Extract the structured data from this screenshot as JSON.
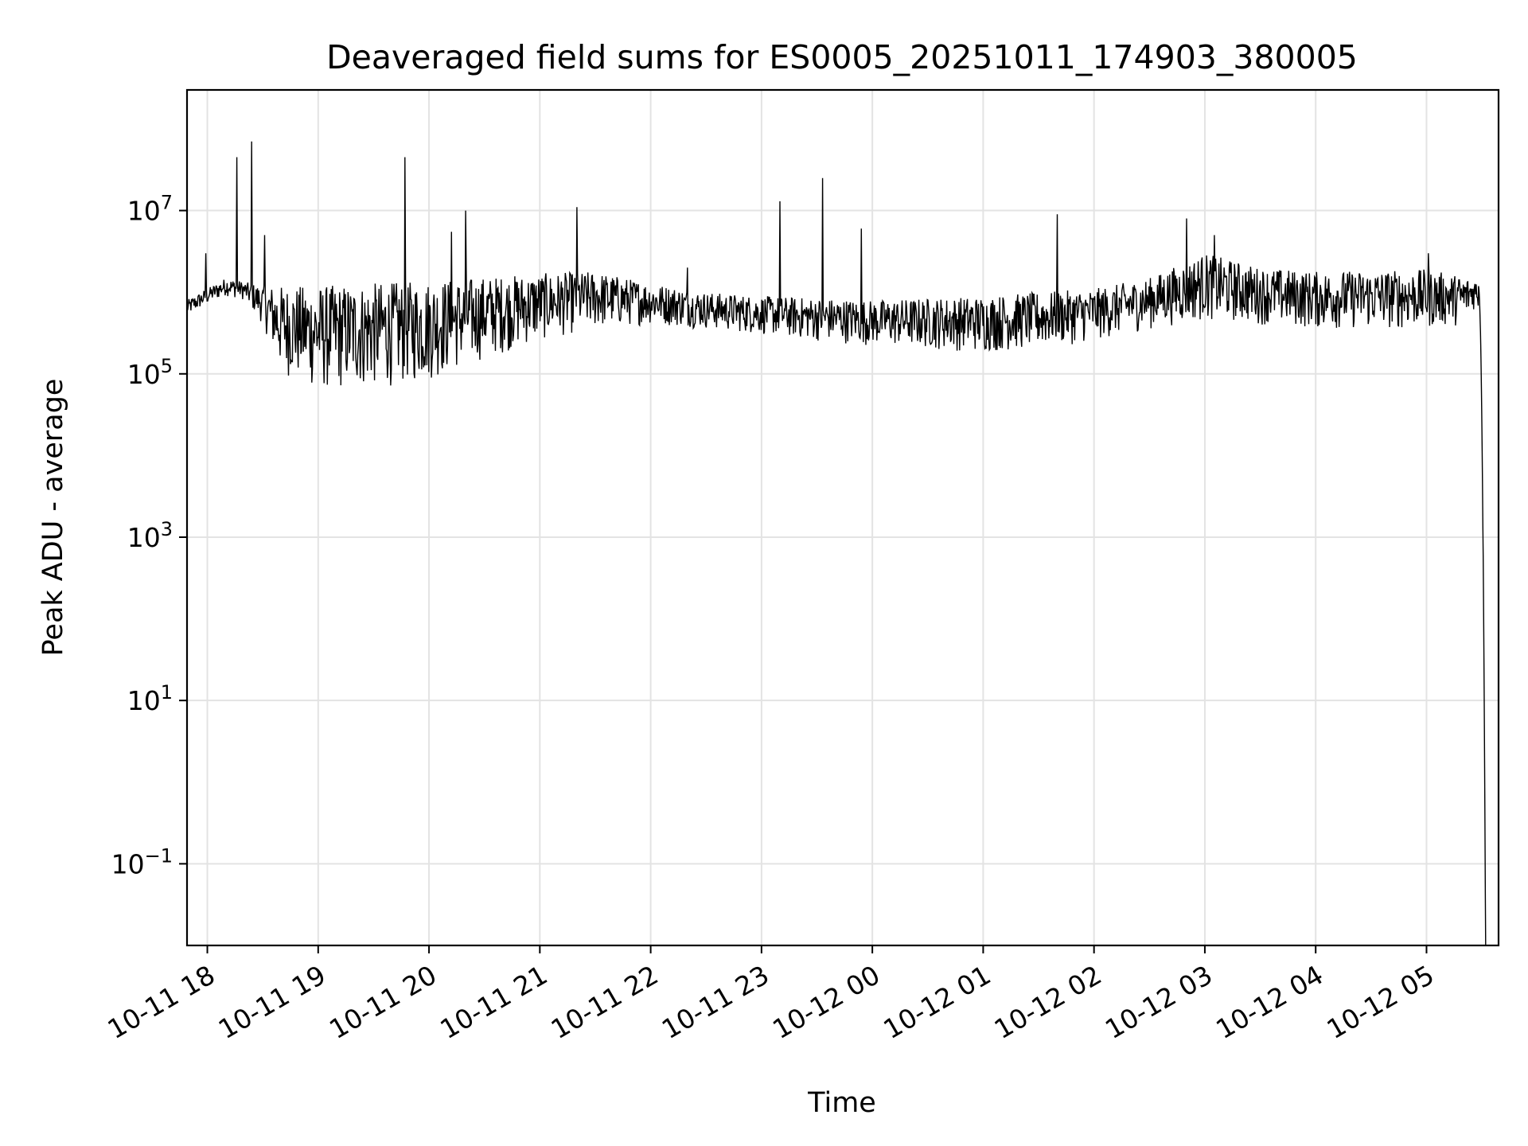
{
  "chart_data": {
    "type": "line",
    "title": "Deaveraged field sums for ES0005_20251011_174903_380005",
    "xlabel": "Time",
    "ylabel": "Peak ADU - average",
    "yscale": "log",
    "grid": true,
    "legend": "none",
    "xlim": [
      "2025-10-11 17:49",
      "2025-10-12 05:39"
    ],
    "ylim": [
      0.01,
      300000000
    ],
    "x_ticks": [
      "10-11 18",
      "10-11 19",
      "10-11 20",
      "10-11 21",
      "10-11 22",
      "10-11 23",
      "10-12 00",
      "10-12 01",
      "10-12 02",
      "10-12 03",
      "10-12 04",
      "10-12 05"
    ],
    "y_ticks": [
      {
        "value": 0.1,
        "base": "10",
        "exp": "−1"
      },
      {
        "value": 10,
        "base": "10",
        "exp": "1"
      },
      {
        "value": 1000,
        "base": "10",
        "exp": "3"
      },
      {
        "value": 100000,
        "base": "10",
        "exp": "5"
      },
      {
        "value": 10000000,
        "base": "10",
        "exp": "7"
      }
    ],
    "series": [
      {
        "color": "#000000",
        "baseline_x": [
          "2025-10-11 17:49",
          "2025-10-11 18:00",
          "2025-10-11 18:10",
          "2025-10-11 18:20",
          "2025-10-11 18:30",
          "2025-10-11 18:40",
          "2025-10-11 19:00",
          "2025-10-11 19:30",
          "2025-10-11 20:00",
          "2025-10-11 20:30",
          "2025-10-11 21:00",
          "2025-10-11 21:30",
          "2025-10-11 22:00",
          "2025-10-11 22:30",
          "2025-10-11 23:00",
          "2025-10-11 23:30",
          "2025-10-12 00:00",
          "2025-10-12 00:30",
          "2025-10-12 01:00",
          "2025-10-12 01:30",
          "2025-10-12 02:00",
          "2025-10-12 02:30",
          "2025-10-12 03:00",
          "2025-10-12 03:30",
          "2025-10-12 04:00",
          "2025-10-12 04:30",
          "2025-10-12 05:00",
          "2025-10-12 05:20",
          "2025-10-12 05:25"
        ],
        "baseline_y": [
          500000,
          700000,
          900000,
          800000,
          400000,
          100000,
          60000,
          65000,
          80000,
          150000,
          250000,
          350000,
          400000,
          350000,
          300000,
          250000,
          220000,
          200000,
          180000,
          200000,
          250000,
          350000,
          450000,
          400000,
          350000,
          350000,
          350000,
          400000,
          600000
        ],
        "top_x": [
          "2025-10-11 17:49",
          "2025-10-11 18:10",
          "2025-10-11 18:30",
          "2025-10-11 19:00",
          "2025-10-11 20:00",
          "2025-10-11 21:00",
          "2025-10-11 21:30",
          "2025-10-11 22:00",
          "2025-10-11 22:30",
          "2025-10-11 23:00",
          "2025-10-11 23:30",
          "2025-10-12 00:00",
          "2025-10-12 00:30",
          "2025-10-12 01:00",
          "2025-10-12 01:30",
          "2025-10-12 02:00",
          "2025-10-12 02:30",
          "2025-10-12 03:00",
          "2025-10-12 03:30",
          "2025-10-12 04:00",
          "2025-10-12 05:00",
          "2025-10-12 05:25"
        ],
        "top_y": [
          800000,
          1500000,
          1200000,
          1200000,
          1400000,
          1700000,
          1800000,
          1300000,
          1000000,
          900000,
          850000,
          800000,
          850000,
          900000,
          1000000,
          1100000,
          1500000,
          3000000,
          2000000,
          1800000,
          1900000,
          1500000
        ],
        "spikes": [
          {
            "x": "2025-10-11 17:59",
            "y": 3000000
          },
          {
            "x": "2025-10-11 18:16",
            "y": 45000000
          },
          {
            "x": "2025-10-11 18:24",
            "y": 70000000
          },
          {
            "x": "2025-10-11 18:31",
            "y": 5000000
          },
          {
            "x": "2025-10-11 19:47",
            "y": 45000000
          },
          {
            "x": "2025-10-11 20:12",
            "y": 5500000
          },
          {
            "x": "2025-10-11 20:20",
            "y": 10000000
          },
          {
            "x": "2025-10-11 21:20",
            "y": 11000000
          },
          {
            "x": "2025-10-11 22:20",
            "y": 2000000
          },
          {
            "x": "2025-10-11 23:10",
            "y": 13000000
          },
          {
            "x": "2025-10-11 23:33",
            "y": 25000000
          },
          {
            "x": "2025-10-11 23:54",
            "y": 6000000
          },
          {
            "x": "2025-10-12 01:40",
            "y": 9000000
          },
          {
            "x": "2025-10-12 02:50",
            "y": 8000000
          },
          {
            "x": "2025-10-12 03:05",
            "y": 5000000
          },
          {
            "x": "2025-10-12 05:01",
            "y": 3000000
          }
        ],
        "final_drop": {
          "x_start": "2025-10-12 05:28",
          "x_end": "2025-10-12 05:32",
          "y_end": 0.01
        }
      }
    ]
  }
}
